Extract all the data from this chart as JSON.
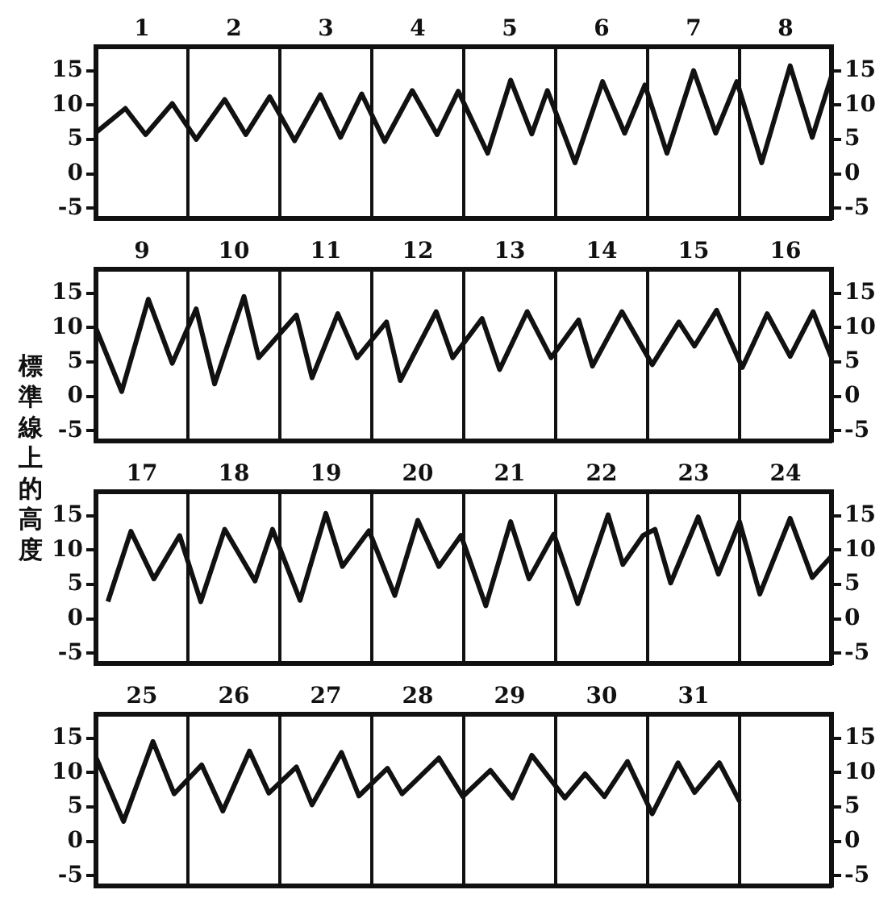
{
  "chart_data": [
    {
      "type": "line",
      "xlim": [
        1,
        9
      ],
      "xticks": [
        {
          "value": 1.5,
          "label": "1"
        },
        {
          "value": 2.5,
          "label": "2"
        },
        {
          "value": 3.5,
          "label": "3"
        },
        {
          "value": 4.5,
          "label": "4"
        },
        {
          "value": 5.5,
          "label": "5"
        },
        {
          "value": 6.5,
          "label": "6"
        },
        {
          "value": 7.5,
          "label": "7"
        },
        {
          "value": 8.5,
          "label": "8"
        }
      ],
      "ref_lines": [
        {
          "axis": "x",
          "value": 2
        },
        {
          "axis": "x",
          "value": 3
        },
        {
          "axis": "x",
          "value": 4
        },
        {
          "axis": "x",
          "value": 5
        },
        {
          "axis": "x",
          "value": 6
        },
        {
          "axis": "x",
          "value": 7
        },
        {
          "axis": "x",
          "value": 8
        }
      ],
      "ylim": [
        -6.5,
        18.5
      ],
      "yticks": [
        -5,
        0,
        5,
        10,
        15
      ],
      "y2lim": [
        -6.5,
        18.5
      ],
      "y2ticks": [
        -5,
        0,
        5,
        10,
        15
      ],
      "series": [
        {
          "color": "#111111",
          "x": [
            1,
            1.32,
            1.54,
            1.83,
            2.09,
            2.4,
            2.63,
            2.89,
            3.16,
            3.44,
            3.66,
            3.89,
            4.14,
            4.44,
            4.71,
            4.94,
            5.26,
            5.51,
            5.74,
            5.91,
            6.21,
            6.51,
            6.75,
            6.97,
            7.21,
            7.5,
            7.74,
            7.97,
            8.24,
            8.55,
            8.79,
            9
          ],
          "values": [
            6,
            9.5,
            5.7,
            10.2,
            5,
            10.8,
            5.7,
            11.2,
            4.8,
            11.5,
            5.3,
            11.6,
            4.7,
            12.1,
            5.7,
            12,
            3,
            13.6,
            5.8,
            12.1,
            1.6,
            13.4,
            5.9,
            12.9,
            3,
            15,
            5.9,
            13.4,
            1.6,
            15.7,
            5.3,
            14.2
          ]
        }
      ]
    },
    {
      "type": "line",
      "ylabel": "標準線上的高度",
      "xlim": [
        9,
        17
      ],
      "xticks": [
        {
          "value": 9.5,
          "label": "9"
        },
        {
          "value": 10.5,
          "label": "10"
        },
        {
          "value": 11.5,
          "label": "11"
        },
        {
          "value": 12.5,
          "label": "12"
        },
        {
          "value": 13.5,
          "label": "13"
        },
        {
          "value": 14.5,
          "label": "14"
        },
        {
          "value": 15.5,
          "label": "15"
        },
        {
          "value": 16.5,
          "label": "16"
        }
      ],
      "ref_lines": [
        {
          "axis": "x",
          "value": 10
        },
        {
          "axis": "x",
          "value": 11
        },
        {
          "axis": "x",
          "value": 12
        },
        {
          "axis": "x",
          "value": 13
        },
        {
          "axis": "x",
          "value": 14
        },
        {
          "axis": "x",
          "value": 15
        },
        {
          "axis": "x",
          "value": 16
        }
      ],
      "ylim": [
        -6.5,
        18.5
      ],
      "yticks": [
        -5,
        0,
        5,
        10,
        15
      ],
      "y2lim": [
        -6.5,
        18.5
      ],
      "y2ticks": [
        -5,
        0,
        5,
        10,
        15
      ],
      "series": [
        {
          "color": "#111111",
          "x": [
            9,
            9.28,
            9.57,
            9.83,
            10.09,
            10.29,
            10.61,
            10.77,
            11.18,
            11.35,
            11.63,
            11.84,
            12.16,
            12.31,
            12.7,
            12.88,
            13.2,
            13.39,
            13.69,
            13.95,
            14.25,
            14.4,
            14.72,
            15.05,
            15.34,
            15.51,
            15.75,
            16.03,
            16.3,
            16.55,
            16.8,
            17
          ],
          "values": [
            9.9,
            0.7,
            14.1,
            4.8,
            12.7,
            1.8,
            14.5,
            5.6,
            11.8,
            2.7,
            12,
            5.6,
            10.8,
            2.3,
            12.3,
            5.6,
            11.3,
            3.9,
            12.3,
            5.6,
            11.1,
            4.4,
            12.3,
            4.6,
            10.8,
            7.3,
            12.5,
            4.2,
            12,
            5.8,
            12.3,
            5.6
          ]
        }
      ]
    },
    {
      "type": "line",
      "xlim": [
        17,
        25
      ],
      "xticks": [
        {
          "value": 17.5,
          "label": "17"
        },
        {
          "value": 18.5,
          "label": "18"
        },
        {
          "value": 19.5,
          "label": "19"
        },
        {
          "value": 20.5,
          "label": "20"
        },
        {
          "value": 21.5,
          "label": "21"
        },
        {
          "value": 22.5,
          "label": "22"
        },
        {
          "value": 23.5,
          "label": "23"
        },
        {
          "value": 24.5,
          "label": "24"
        }
      ],
      "ref_lines": [
        {
          "axis": "x",
          "value": 18
        },
        {
          "axis": "x",
          "value": 19
        },
        {
          "axis": "x",
          "value": 20
        },
        {
          "axis": "x",
          "value": 21
        },
        {
          "axis": "x",
          "value": 22
        },
        {
          "axis": "x",
          "value": 23
        },
        {
          "axis": "x",
          "value": 24
        }
      ],
      "ylim": [
        -6.5,
        18.5
      ],
      "yticks": [
        -5,
        0,
        5,
        10,
        15
      ],
      "y2lim": [
        -6.5,
        18.5
      ],
      "y2ticks": [
        -5,
        0,
        5,
        10,
        15
      ],
      "series": [
        {
          "color": "#111111",
          "x": [
            17.13,
            17.38,
            17.63,
            17.91,
            18.14,
            18.4,
            18.73,
            18.92,
            19.22,
            19.5,
            19.68,
            19.97,
            20.25,
            20.5,
            20.73,
            20.97,
            21.24,
            21.51,
            21.71,
            21.98,
            22.24,
            22.57,
            22.73,
            22.95,
            23.08,
            23.25,
            23.55,
            23.77,
            24,
            24.22,
            24.55,
            24.79,
            25
          ],
          "values": [
            2.5,
            12.7,
            5.8,
            12.1,
            2.5,
            13,
            5.5,
            13,
            2.7,
            15.3,
            7.6,
            12.8,
            3.4,
            14.3,
            7.6,
            12.1,
            1.9,
            14.1,
            5.8,
            12.3,
            2.2,
            15.1,
            7.9,
            12.1,
            13,
            5.2,
            14.8,
            6.5,
            14.1,
            3.6,
            14.6,
            6,
            9.1
          ]
        }
      ]
    },
    {
      "type": "line",
      "xlim": [
        25,
        33
      ],
      "xticks": [
        {
          "value": 25.5,
          "label": "25"
        },
        {
          "value": 26.5,
          "label": "26"
        },
        {
          "value": 27.5,
          "label": "27"
        },
        {
          "value": 28.5,
          "label": "28"
        },
        {
          "value": 29.5,
          "label": "29"
        },
        {
          "value": 30.5,
          "label": "30"
        },
        {
          "value": 31.5,
          "label": "31"
        }
      ],
      "ref_lines": [
        {
          "axis": "x",
          "value": 26
        },
        {
          "axis": "x",
          "value": 27
        },
        {
          "axis": "x",
          "value": 28
        },
        {
          "axis": "x",
          "value": 29
        },
        {
          "axis": "x",
          "value": 30
        },
        {
          "axis": "x",
          "value": 31
        },
        {
          "axis": "x",
          "value": 32
        }
      ],
      "ylim": [
        -6.5,
        18.5
      ],
      "yticks": [
        -5,
        0,
        5,
        10,
        15
      ],
      "y2lim": [
        -6.5,
        18.5
      ],
      "y2ticks": [
        -5,
        0,
        5,
        10,
        15
      ],
      "series": [
        {
          "color": "#111111",
          "x": [
            25,
            25.3,
            25.62,
            25.85,
            26.15,
            26.38,
            26.67,
            26.88,
            27.18,
            27.35,
            27.67,
            27.86,
            28.17,
            28.33,
            28.73,
            28.99,
            29.29,
            29.53,
            29.74,
            30.1,
            30.32,
            30.53,
            30.78,
            31.05,
            31.33,
            31.51,
            31.78,
            32
          ],
          "values": [
            12.2,
            2.9,
            14.5,
            6.9,
            11.1,
            4.4,
            13.1,
            7,
            10.8,
            5.3,
            12.9,
            6.6,
            10.6,
            6.9,
            12.1,
            6.5,
            10.3,
            6.3,
            12.5,
            6.3,
            9.8,
            6.5,
            11.6,
            4,
            11.4,
            7.1,
            11.4,
            5.8
          ]
        }
      ]
    }
  ]
}
